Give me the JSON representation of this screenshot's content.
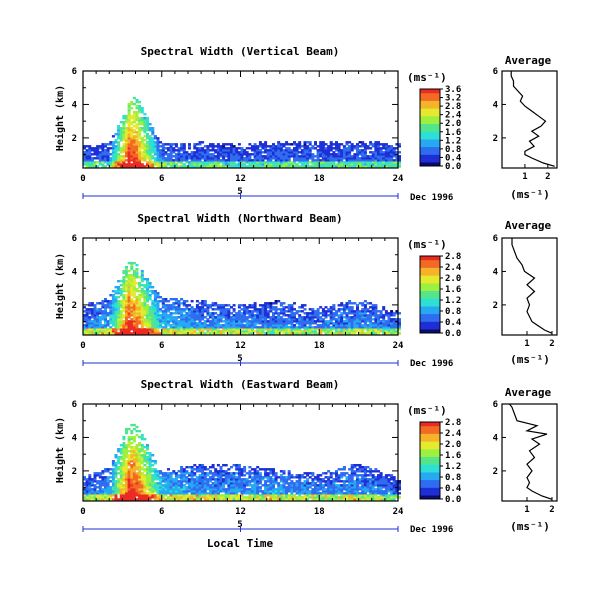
{
  "figure": {
    "xlabel": "Local Time",
    "date_label": "Dec 1996",
    "day_label": "5",
    "units_label": "(ms⁻¹)",
    "average_xlabel": "(ms⁻¹)",
    "colors": {
      "scale": [
        "#0a0a6e",
        "#1e2fd6",
        "#2f6cf0",
        "#27a9f2",
        "#2de0d6",
        "#54e58c",
        "#9ef040",
        "#e6ea2e",
        "#f5b32a",
        "#f26a24",
        "#ea2b23"
      ],
      "background": "#ffffff"
    }
  },
  "chart_data": [
    {
      "type": "heatmap",
      "title": "Spectral Width (Vertical Beam)",
      "xlabel": "Local Time",
      "ylabel": "Height (km)",
      "xlim": [
        0,
        24
      ],
      "ylim": [
        0.2,
        6.0
      ],
      "xticks": [
        "0",
        "6",
        "12",
        "18",
        "24",
        "6"
      ],
      "yticks": [
        "2",
        "4",
        "6"
      ],
      "colorbar": {
        "min": 0.0,
        "max": 3.6,
        "ticks": [
          "3.6",
          "3.2",
          "2.8",
          "2.4",
          "2.0",
          "1.6",
          "1.2",
          "0.8",
          "0.4",
          "0.0"
        ]
      },
      "description_points": {
        "time_h": [
          0,
          2,
          3.5,
          4,
          6,
          9,
          12,
          15,
          18,
          21,
          24
        ],
        "max_echo_height_km": [
          1.5,
          1.6,
          4.0,
          4.6,
          1.6,
          1.7,
          1.6,
          1.8,
          1.7,
          1.8,
          1.6
        ],
        "typical_width": [
          0.6,
          0.7,
          3.4,
          3.2,
          0.8,
          0.6,
          0.6,
          0.7,
          0.6,
          0.7,
          0.6
        ]
      },
      "average": {
        "title": "Average",
        "xlabel": "(ms⁻¹)",
        "xticks": [
          "1",
          "2"
        ],
        "xlim": [
          0,
          2.4
        ],
        "ylim": [
          0.2,
          6.0
        ],
        "yticks": [
          "2",
          "4",
          "6"
        ],
        "height_km": [
          0.3,
          0.5,
          0.8,
          1.0,
          1.2,
          1.5,
          1.8,
          2.1,
          2.4,
          2.7,
          3.0,
          3.3,
          3.6,
          3.9,
          4.2,
          4.5,
          4.8,
          5.1,
          5.4,
          5.7,
          6.0
        ],
        "value": [
          2.3,
          1.8,
          1.3,
          1.0,
          1.0,
          1.4,
          1.2,
          1.6,
          1.3,
          1.7,
          1.9,
          1.6,
          1.3,
          1.0,
          0.8,
          0.9,
          0.7,
          0.5,
          0.5,
          0.4,
          0.4
        ]
      }
    },
    {
      "type": "heatmap",
      "title": "Spectral Width (Northward Beam)",
      "xlabel": "Local Time",
      "ylabel": "Height (km)",
      "xlim": [
        0,
        24
      ],
      "ylim": [
        0.2,
        6.0
      ],
      "xticks": [
        "0",
        "6",
        "12",
        "18",
        "24",
        "6"
      ],
      "yticks": [
        "2",
        "4",
        "6"
      ],
      "colorbar": {
        "min": 0.0,
        "max": 2.8,
        "ticks": [
          "2.8",
          "2.4",
          "2.0",
          "1.6",
          "1.2",
          "0.8",
          "0.4",
          "0.0"
        ]
      },
      "description_points": {
        "time_h": [
          0,
          2,
          3.5,
          4,
          6,
          9,
          12,
          15,
          18,
          21,
          24
        ],
        "max_echo_height_km": [
          2.0,
          2.4,
          4.6,
          4.5,
          2.4,
          2.2,
          2.0,
          2.2,
          1.8,
          2.3,
          1.6
        ],
        "typical_width": [
          0.6,
          0.8,
          2.6,
          2.4,
          0.9,
          0.7,
          0.7,
          0.6,
          0.6,
          0.7,
          0.5
        ]
      },
      "average": {
        "title": "Average",
        "xlabel": "(ms⁻¹)",
        "xticks": [
          "1",
          "2"
        ],
        "xlim": [
          0,
          2.2
        ],
        "ylim": [
          0.2,
          6.0
        ],
        "yticks": [
          "2",
          "4",
          "6"
        ],
        "height_km": [
          0.3,
          0.5,
          0.8,
          1.0,
          1.3,
          1.6,
          2.0,
          2.4,
          2.8,
          3.2,
          3.6,
          4.0,
          4.4,
          4.8,
          5.2,
          5.6,
          6.0
        ],
        "value": [
          2.0,
          1.7,
          1.4,
          1.2,
          1.1,
          1.0,
          1.1,
          1.0,
          1.3,
          1.0,
          1.3,
          0.9,
          0.8,
          0.6,
          0.5,
          0.4,
          0.4
        ]
      }
    },
    {
      "type": "heatmap",
      "title": "Spectral Width (Eastward Beam)",
      "xlabel": "Local Time",
      "ylabel": "Height (km)",
      "xlim": [
        0,
        24
      ],
      "ylim": [
        0.2,
        6.0
      ],
      "xticks": [
        "0",
        "6",
        "12",
        "18",
        "24",
        "6"
      ],
      "yticks": [
        "2",
        "4",
        "6"
      ],
      "colorbar": {
        "min": 0.0,
        "max": 2.8,
        "ticks": [
          "2.8",
          "2.4",
          "2.0",
          "1.6",
          "1.2",
          "0.8",
          "0.4",
          "0.0"
        ]
      },
      "description_points": {
        "time_h": [
          0,
          2,
          3.5,
          4,
          6,
          9,
          12,
          15,
          18,
          21,
          24
        ],
        "max_echo_height_km": [
          1.6,
          2.2,
          4.8,
          4.9,
          2.0,
          2.4,
          2.3,
          2.0,
          1.8,
          2.4,
          1.6
        ],
        "typical_width": [
          0.6,
          0.8,
          2.6,
          2.5,
          1.0,
          0.7,
          0.7,
          0.8,
          0.7,
          0.7,
          0.5
        ]
      },
      "average": {
        "title": "Average",
        "xlabel": "(ms⁻¹)",
        "xticks": [
          "1",
          "2"
        ],
        "xlim": [
          0,
          2.2
        ],
        "ylim": [
          0.2,
          6.0
        ],
        "yticks": [
          "2",
          "4",
          "6"
        ],
        "height_km": [
          0.3,
          0.5,
          0.8,
          1.0,
          1.3,
          1.6,
          2.0,
          2.4,
          2.8,
          3.2,
          3.6,
          3.9,
          4.2,
          4.4,
          4.7,
          5.0,
          5.4,
          5.8,
          6.0
        ],
        "value": [
          2.0,
          1.6,
          1.2,
          1.0,
          1.1,
          1.0,
          1.2,
          1.0,
          1.3,
          1.1,
          1.5,
          1.2,
          1.8,
          1.0,
          1.4,
          0.6,
          0.5,
          0.4,
          0.3
        ]
      }
    }
  ]
}
